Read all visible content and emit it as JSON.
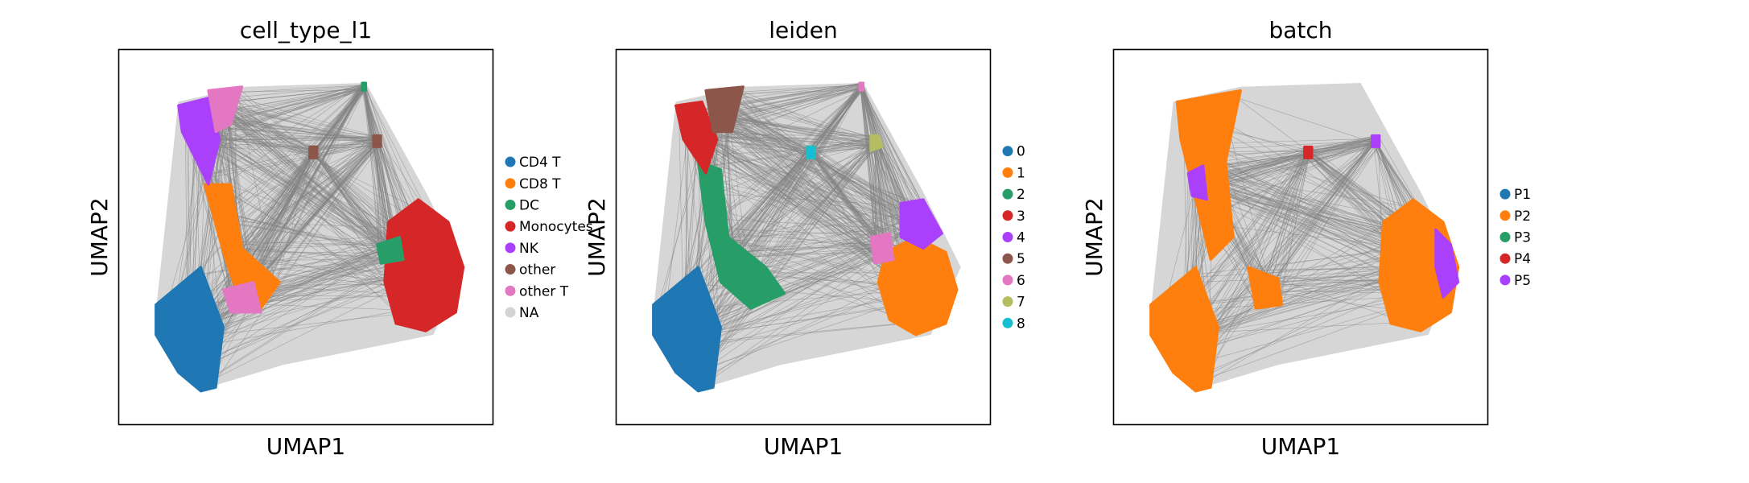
{
  "chart_data": [
    {
      "type": "scatter",
      "title": "cell_type_l1",
      "xlabel": "UMAP1",
      "ylabel": "UMAP2",
      "grid": false,
      "ticks": false,
      "legend_placement": "right",
      "legend": [
        {
          "label": "CD4 T",
          "color": "#1f77b4"
        },
        {
          "label": "CD8 T",
          "color": "#ff7f0e"
        },
        {
          "label": "DC",
          "color": "#279e68"
        },
        {
          "label": "Monocytes",
          "color": "#d62728"
        },
        {
          "label": "NK",
          "color": "#aa40fc"
        },
        {
          "label": "other",
          "color": "#8c564b"
        },
        {
          "label": "other T",
          "color": "#e377c2"
        },
        {
          "label": "NA",
          "color": "#d3d3d3"
        }
      ],
      "clusters": [
        {
          "group": "CD4 T",
          "shape": [
            [
              0.1,
              0.68
            ],
            [
              0.22,
              0.58
            ],
            [
              0.28,
              0.74
            ],
            [
              0.26,
              0.9
            ],
            [
              0.22,
              0.91
            ],
            [
              0.16,
              0.86
            ],
            [
              0.1,
              0.76
            ]
          ]
        },
        {
          "group": "CD8 T",
          "shape": [
            [
              0.23,
              0.36
            ],
            [
              0.3,
              0.36
            ],
            [
              0.33,
              0.53
            ],
            [
              0.43,
              0.62
            ],
            [
              0.38,
              0.69
            ],
            [
              0.32,
              0.66
            ],
            [
              0.28,
              0.54
            ]
          ]
        },
        {
          "group": "NK",
          "shape": [
            [
              0.16,
              0.15
            ],
            [
              0.24,
              0.13
            ],
            [
              0.27,
              0.24
            ],
            [
              0.24,
              0.36
            ],
            [
              0.2,
              0.28
            ],
            [
              0.17,
              0.22
            ]
          ]
        },
        {
          "group": "other T",
          "shape": [
            [
              0.24,
              0.11
            ],
            [
              0.33,
              0.1
            ],
            [
              0.3,
              0.2
            ],
            [
              0.26,
              0.22
            ]
          ]
        },
        {
          "group": "other T",
          "shape": [
            [
              0.28,
              0.64
            ],
            [
              0.36,
              0.62
            ],
            [
              0.38,
              0.7
            ],
            [
              0.3,
              0.7
            ]
          ]
        },
        {
          "group": "Monocytes",
          "shape": [
            [
              0.72,
              0.46
            ],
            [
              0.8,
              0.4
            ],
            [
              0.88,
              0.46
            ],
            [
              0.92,
              0.58
            ],
            [
              0.9,
              0.7
            ],
            [
              0.82,
              0.75
            ],
            [
              0.74,
              0.73
            ],
            [
              0.71,
              0.62
            ]
          ]
        },
        {
          "group": "DC",
          "shape": [
            [
              0.69,
              0.52
            ],
            [
              0.75,
              0.5
            ],
            [
              0.76,
              0.56
            ],
            [
              0.7,
              0.57
            ]
          ]
        },
        {
          "group": "other",
          "shape": [
            [
              0.68,
              0.23
            ],
            [
              0.7,
              0.23
            ],
            [
              0.7,
              0.26
            ],
            [
              0.68,
              0.26
            ]
          ]
        },
        {
          "group": "other",
          "shape": [
            [
              0.51,
              0.26
            ],
            [
              0.53,
              0.26
            ],
            [
              0.53,
              0.29
            ],
            [
              0.51,
              0.29
            ]
          ]
        },
        {
          "group": "DC",
          "shape": [
            [
              0.65,
              0.09
            ],
            [
              0.66,
              0.09
            ],
            [
              0.66,
              0.11
            ],
            [
              0.65,
              0.11
            ]
          ]
        }
      ]
    },
    {
      "type": "scatter",
      "title": "leiden",
      "xlabel": "UMAP1",
      "ylabel": "UMAP2",
      "grid": false,
      "ticks": false,
      "legend_placement": "right",
      "legend": [
        {
          "label": "0",
          "color": "#1f77b4"
        },
        {
          "label": "1",
          "color": "#ff7f0e"
        },
        {
          "label": "2",
          "color": "#279e68"
        },
        {
          "label": "3",
          "color": "#d62728"
        },
        {
          "label": "4",
          "color": "#aa40fc"
        },
        {
          "label": "5",
          "color": "#8c564b"
        },
        {
          "label": "6",
          "color": "#e377c2"
        },
        {
          "label": "7",
          "color": "#b5bd61"
        },
        {
          "label": "8",
          "color": "#17becf"
        }
      ],
      "clusters": [
        {
          "group": "0",
          "shape": [
            [
              0.1,
              0.68
            ],
            [
              0.22,
              0.58
            ],
            [
              0.28,
              0.74
            ],
            [
              0.26,
              0.9
            ],
            [
              0.22,
              0.91
            ],
            [
              0.16,
              0.86
            ],
            [
              0.1,
              0.76
            ]
          ]
        },
        {
          "group": "2",
          "shape": [
            [
              0.22,
              0.3
            ],
            [
              0.28,
              0.32
            ],
            [
              0.3,
              0.5
            ],
            [
              0.4,
              0.58
            ],
            [
              0.45,
              0.65
            ],
            [
              0.36,
              0.69
            ],
            [
              0.28,
              0.62
            ],
            [
              0.24,
              0.46
            ]
          ]
        },
        {
          "group": "3",
          "shape": [
            [
              0.16,
              0.15
            ],
            [
              0.23,
              0.14
            ],
            [
              0.27,
              0.24
            ],
            [
              0.24,
              0.33
            ],
            [
              0.18,
              0.24
            ]
          ]
        },
        {
          "group": "5",
          "shape": [
            [
              0.24,
              0.11
            ],
            [
              0.34,
              0.1
            ],
            [
              0.31,
              0.22
            ],
            [
              0.26,
              0.22
            ]
          ]
        },
        {
          "group": "1",
          "shape": [
            [
              0.72,
              0.54
            ],
            [
              0.8,
              0.5
            ],
            [
              0.88,
              0.54
            ],
            [
              0.91,
              0.64
            ],
            [
              0.88,
              0.73
            ],
            [
              0.8,
              0.76
            ],
            [
              0.73,
              0.72
            ],
            [
              0.7,
              0.62
            ]
          ]
        },
        {
          "group": "4",
          "shape": [
            [
              0.76,
              0.41
            ],
            [
              0.82,
              0.4
            ],
            [
              0.87,
              0.49
            ],
            [
              0.82,
              0.53
            ],
            [
              0.76,
              0.5
            ]
          ]
        },
        {
          "group": "6",
          "shape": [
            [
              0.68,
              0.5
            ],
            [
              0.73,
              0.49
            ],
            [
              0.74,
              0.56
            ],
            [
              0.69,
              0.57
            ]
          ]
        },
        {
          "group": "7",
          "shape": [
            [
              0.68,
              0.23
            ],
            [
              0.7,
              0.23
            ],
            [
              0.71,
              0.26
            ],
            [
              0.68,
              0.27
            ]
          ]
        },
        {
          "group": "8",
          "shape": [
            [
              0.51,
              0.26
            ],
            [
              0.53,
              0.26
            ],
            [
              0.53,
              0.29
            ],
            [
              0.51,
              0.29
            ]
          ]
        },
        {
          "group": "6",
          "shape": [
            [
              0.65,
              0.09
            ],
            [
              0.66,
              0.09
            ],
            [
              0.66,
              0.11
            ],
            [
              0.65,
              0.11
            ]
          ]
        }
      ]
    },
    {
      "type": "scatter",
      "title": "batch",
      "xlabel": "UMAP1",
      "ylabel": "UMAP2",
      "grid": false,
      "ticks": false,
      "legend_placement": "right",
      "legend": [
        {
          "label": "P1",
          "color": "#1f77b4"
        },
        {
          "label": "P2",
          "color": "#ff7f0e"
        },
        {
          "label": "P3",
          "color": "#279e68"
        },
        {
          "label": "P4",
          "color": "#d62728"
        },
        {
          "label": "P5",
          "color": "#aa40fc"
        }
      ],
      "clusters": [
        {
          "group": "P2",
          "shape": [
            [
              0.1,
              0.68
            ],
            [
              0.22,
              0.58
            ],
            [
              0.28,
              0.74
            ],
            [
              0.26,
              0.9
            ],
            [
              0.22,
              0.91
            ],
            [
              0.16,
              0.86
            ],
            [
              0.1,
              0.76
            ]
          ]
        },
        {
          "group": "P2",
          "shape": [
            [
              0.17,
              0.14
            ],
            [
              0.34,
              0.11
            ],
            [
              0.3,
              0.3
            ],
            [
              0.32,
              0.5
            ],
            [
              0.26,
              0.56
            ],
            [
              0.22,
              0.4
            ],
            [
              0.18,
              0.24
            ]
          ]
        },
        {
          "group": "P2",
          "shape": [
            [
              0.36,
              0.58
            ],
            [
              0.44,
              0.61
            ],
            [
              0.45,
              0.68
            ],
            [
              0.38,
              0.69
            ]
          ]
        },
        {
          "group": "P2",
          "shape": [
            [
              0.72,
              0.46
            ],
            [
              0.8,
              0.4
            ],
            [
              0.88,
              0.46
            ],
            [
              0.92,
              0.58
            ],
            [
              0.9,
              0.7
            ],
            [
              0.82,
              0.75
            ],
            [
              0.74,
              0.73
            ],
            [
              0.71,
              0.62
            ]
          ]
        },
        {
          "group": "P5",
          "shape": [
            [
              0.86,
              0.48
            ],
            [
              0.9,
              0.52
            ],
            [
              0.92,
              0.62
            ],
            [
              0.88,
              0.66
            ],
            [
              0.86,
              0.58
            ]
          ]
        },
        {
          "group": "P5",
          "shape": [
            [
              0.2,
              0.33
            ],
            [
              0.24,
              0.31
            ],
            [
              0.25,
              0.4
            ],
            [
              0.21,
              0.39
            ]
          ]
        },
        {
          "group": "P4",
          "shape": [
            [
              0.51,
              0.26
            ],
            [
              0.53,
              0.26
            ],
            [
              0.53,
              0.29
            ],
            [
              0.51,
              0.29
            ]
          ]
        },
        {
          "group": "P5",
          "shape": [
            [
              0.69,
              0.23
            ],
            [
              0.71,
              0.23
            ],
            [
              0.71,
              0.26
            ],
            [
              0.69,
              0.26
            ]
          ]
        }
      ]
    }
  ]
}
